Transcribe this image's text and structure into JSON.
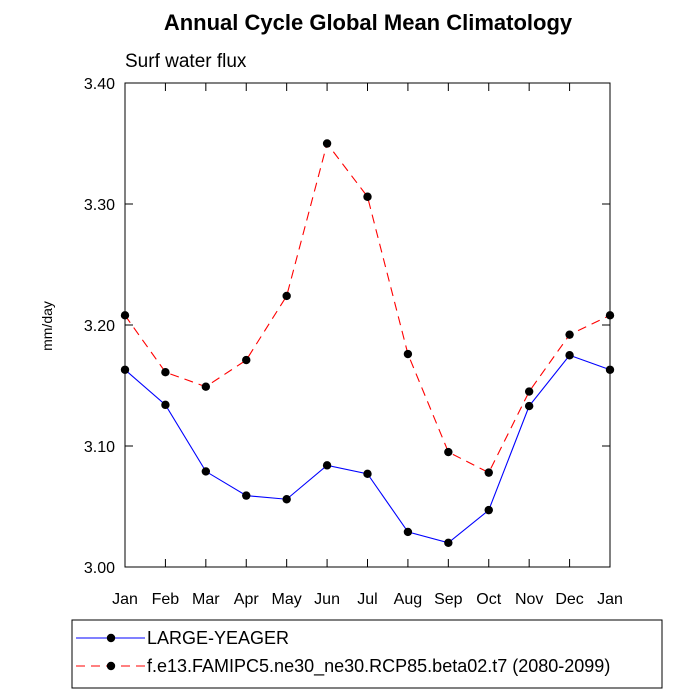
{
  "chart_data": {
    "type": "line",
    "title": "Annual Cycle Global Mean Climatology",
    "subtitle": "Surf water flux",
    "xlabel": "",
    "ylabel": "mm/day",
    "categories": [
      "Jan",
      "Feb",
      "Mar",
      "Apr",
      "May",
      "Jun",
      "Jul",
      "Aug",
      "Sep",
      "Oct",
      "Nov",
      "Dec",
      "Jan"
    ],
    "ylim": [
      3.0,
      3.4
    ],
    "yticks": [
      "3.00",
      "3.10",
      "3.20",
      "3.30",
      "3.40"
    ],
    "ytick_values": [
      3.0,
      3.1,
      3.2,
      3.3,
      3.4
    ],
    "grid": false,
    "legend_position": "bottom",
    "series": [
      {
        "name": "LARGE-YEAGER",
        "color": "#0000ff",
        "dash": "solid",
        "values": [
          3.163,
          3.134,
          3.079,
          3.059,
          3.056,
          3.084,
          3.077,
          3.029,
          3.02,
          3.047,
          3.133,
          3.175,
          3.163
        ]
      },
      {
        "name": "f.e13.FAMIPC5.ne30_ne30.RCP85.beta02.t7 (2080-2099)",
        "color": "#ff0000",
        "dash": "dashed",
        "values": [
          3.208,
          3.161,
          3.149,
          3.171,
          3.224,
          3.35,
          3.306,
          3.176,
          3.095,
          3.078,
          3.145,
          3.192,
          3.208
        ]
      }
    ]
  }
}
